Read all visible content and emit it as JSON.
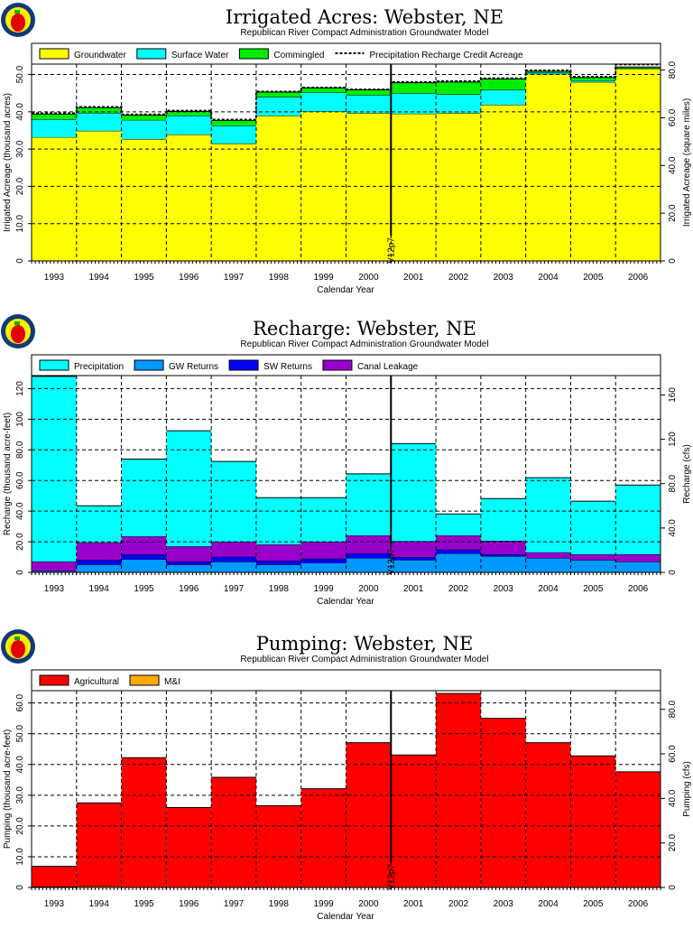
{
  "chart_data": [
    {
      "type": "bar",
      "stacked": true,
      "title": "Irrigated Acres: Webster, NE",
      "subtitle": "Republican River Compact Administration Groundwater Model",
      "xlabel": "Calendar Year",
      "ylabel": "Irrigated Acreage (thousand acres)",
      "ylabel_right": "Irrigated Acreage (square miles)",
      "ylim": [
        0,
        52.8
      ],
      "yticks": [
        "0",
        "10.0",
        "20.0",
        "30.0",
        "40.0",
        "50.0"
      ],
      "yticks_right": [
        "0",
        "20.0",
        "40.0",
        "60.0",
        "80.0"
      ],
      "right_factor": 1.5625,
      "categories": [
        "1993",
        "1994",
        "1995",
        "1996",
        "1997",
        "1998",
        "1999",
        "2000",
        "2001",
        "2002",
        "2003",
        "2004",
        "2005",
        "2006"
      ],
      "marker": {
        "label": "V12p7",
        "after_index": 7
      },
      "series": [
        {
          "name": "Groundwater",
          "color": "#ffff00",
          "values": [
            33.2,
            34.9,
            32.7,
            33.9,
            31.5,
            39.0,
            40.1,
            39.7,
            39.5,
            39.7,
            41.9,
            50.2,
            48.0,
            51.6
          ]
        },
        {
          "name": "Surface Water",
          "color": "#00ffff",
          "values": [
            4.8,
            4.8,
            5.1,
            5.1,
            4.8,
            5.0,
            5.1,
            4.8,
            5.5,
            5.0,
            4.0,
            0.4,
            0.4,
            0.1
          ]
        },
        {
          "name": "Commingled",
          "color": "#00ee00",
          "values": [
            1.4,
            1.4,
            1.3,
            1.1,
            1.4,
            1.3,
            1.2,
            1.4,
            2.8,
            3.3,
            2.9,
            0.3,
            0.8,
            0.3
          ]
        }
      ],
      "line_series": {
        "name": "Precipitation Recharge Credit Acreage",
        "values": [
          39.6,
          41.3,
          39.3,
          40.3,
          37.9,
          45.4,
          46.5,
          46.0,
          48.0,
          48.2,
          49.0,
          51.1,
          49.4,
          52.7
        ]
      }
    },
    {
      "type": "bar",
      "stacked": true,
      "title": "Recharge: Webster, NE",
      "subtitle": "Republican River Compact Administration Groundwater Model",
      "xlabel": "Calendar Year",
      "ylabel": "Recharge (thousand acre-feet)",
      "ylabel_right": "Recharge (cfs)",
      "ylim": [
        0,
        128.5
      ],
      "yticks": [
        "0",
        "20.0",
        "40.0",
        "60.0",
        "80.0",
        "100",
        "120"
      ],
      "yticks_right": [
        "0",
        "40.0",
        "80.0",
        "120",
        "160"
      ],
      "right_factor": 1.381,
      "categories": [
        "1993",
        "1994",
        "1995",
        "1996",
        "1997",
        "1998",
        "1999",
        "2000",
        "2001",
        "2002",
        "2003",
        "2004",
        "2005",
        "2006"
      ],
      "marker": {
        "label": "V12p7",
        "after_index": 7
      },
      "series": [
        {
          "name": "GW Returns",
          "color": "#0099ff",
          "values": [
            1.0,
            5.1,
            8.6,
            5.1,
            7.0,
            5.1,
            6.3,
            9.4,
            8.2,
            12.4,
            10.6,
            9.4,
            8.2,
            7.1
          ]
        },
        {
          "name": "SW Returns",
          "color": "#0000ff",
          "values": [
            0.0,
            3.1,
            3.2,
            2.0,
            3.2,
            2.5,
            2.7,
            3.0,
            1.8,
            2.5,
            1.2,
            0.0,
            0.0,
            0.0
          ]
        },
        {
          "name": "Canal Leakage",
          "color": "#9900cc",
          "values": [
            6.1,
            11.4,
            11.7,
            9.9,
            9.8,
            10.6,
            11.0,
            11.7,
            10.4,
            9.2,
            8.8,
            3.7,
            3.6,
            4.7
          ]
        },
        {
          "name": "Precipitation",
          "color": "#00ffff",
          "values": [
            120.9,
            23.9,
            50.5,
            75.5,
            52.4,
            30.6,
            28.8,
            40.2,
            63.7,
            14.1,
            27.6,
            48.7,
            34.7,
            45.2
          ]
        }
      ],
      "legend_order": [
        3,
        0,
        1,
        2
      ]
    },
    {
      "type": "bar",
      "stacked": true,
      "title": "Pumping: Webster, NE",
      "subtitle": "Republican River Compact Administration Groundwater Model",
      "xlabel": "Calendar Year",
      "ylabel": "Pumping (thousand acre-feet)",
      "ylabel_right": "Pumping (cfs)",
      "ylim": [
        0,
        64
      ],
      "yticks": [
        "0",
        "10.0",
        "20.0",
        "30.0",
        "40.0",
        "50.0",
        "60.0"
      ],
      "yticks_right": [
        "0",
        "20.0",
        "40.0",
        "60.0",
        "80.0"
      ],
      "right_factor": 1.381,
      "categories": [
        "1993",
        "1994",
        "1995",
        "1996",
        "1997",
        "1998",
        "1999",
        "2000",
        "2001",
        "2002",
        "2003",
        "2004",
        "2005",
        "2006"
      ],
      "marker": {
        "label": "V12p7",
        "after_index": 7
      },
      "series": [
        {
          "name": "M&I",
          "color": "#ffaa00",
          "values": [
            0.3,
            0.4,
            0.1,
            0.1,
            0.1,
            0.1,
            0.1,
            0.1,
            0.1,
            0.1,
            0.1,
            0.1,
            0.1,
            0.1
          ]
        },
        {
          "name": "Agricultural",
          "color": "#ff0000",
          "values": [
            6.6,
            27.1,
            42.1,
            25.9,
            35.7,
            26.5,
            32.0,
            47.0,
            43.0,
            63.0,
            54.9,
            47.0,
            42.7,
            37.5
          ]
        }
      ],
      "legend_order": [
        1,
        0
      ]
    }
  ]
}
